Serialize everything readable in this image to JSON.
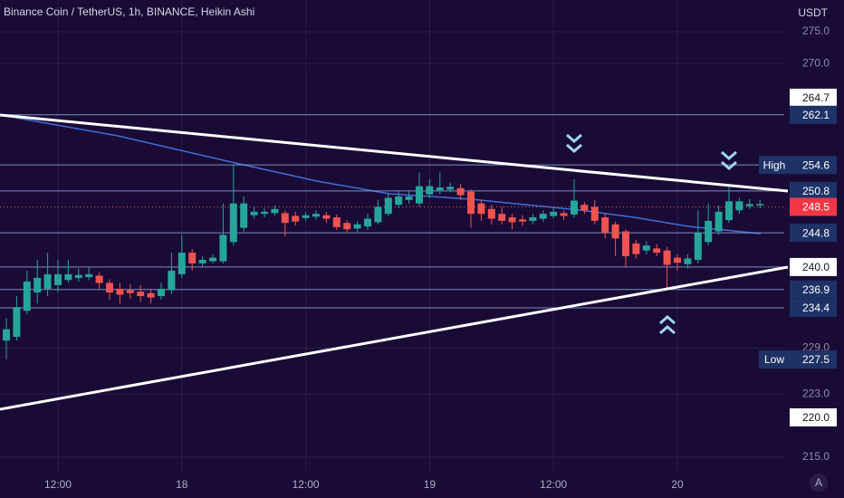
{
  "chart_data": {
    "type": "candlestick",
    "title": "Binance Coin / TetherUS, 1h, BINANCE, Heikin Ashi",
    "currency": "USDT",
    "scale_button": "A",
    "log_scale": true,
    "grid": true,
    "up_color": "#26a69a",
    "down_color": "#ef5350",
    "ylim": [
      213.3,
      280.1
    ],
    "yticks": [
      {
        "value": 275,
        "label": "275.0"
      },
      {
        "value": 270,
        "label": "270.0"
      },
      {
        "value": 229,
        "label": "229.0"
      },
      {
        "value": 223,
        "label": "223.0"
      },
      {
        "value": 215,
        "label": "215.0"
      }
    ],
    "categories": [
      null,
      null,
      null,
      null,
      null,
      "12:00",
      null,
      null,
      null,
      null,
      null,
      null,
      null,
      null,
      null,
      null,
      null,
      "18",
      null,
      null,
      null,
      null,
      null,
      null,
      null,
      null,
      null,
      null,
      null,
      "12:00",
      null,
      null,
      null,
      null,
      null,
      null,
      null,
      null,
      null,
      null,
      null,
      "19",
      null,
      null,
      null,
      null,
      null,
      null,
      null,
      null,
      null,
      null,
      null,
      "12:00",
      null,
      null,
      null,
      null,
      null,
      null,
      null,
      null,
      null,
      null,
      null,
      "20",
      null,
      null,
      null,
      null,
      null,
      null,
      null,
      null
    ],
    "open": [
      230,
      230.5,
      234,
      236.5,
      237,
      237.5,
      238.2,
      238.5,
      238.6,
      238.8,
      237.8,
      237,
      236.8,
      236.6,
      236.4,
      236,
      236.8,
      239,
      242,
      240.5,
      240.8,
      240.8,
      243.5,
      245.5,
      247.3,
      247.5,
      247.6,
      247.6,
      247.2,
      246.9,
      247.1,
      247.3,
      247,
      246.2,
      245.4,
      245.7,
      246.3,
      247.5,
      248.8,
      249.5,
      249,
      250.3,
      250.9,
      251,
      251.2,
      250.7,
      249,
      248.2,
      247.5,
      247,
      246.7,
      246.5,
      246.8,
      247.2,
      247.6,
      247.4,
      248.8,
      248.5,
      247,
      246,
      245,
      243.3,
      242.3,
      242.6,
      242.3,
      241.3,
      240.4,
      241,
      243.5,
      245,
      246.6,
      248,
      248.6,
      248.7
    ],
    "high": [
      233,
      236,
      239.5,
      241,
      242,
      241,
      241,
      239.8,
      240,
      239.3,
      238.3,
      237.8,
      237.6,
      237.5,
      237,
      237.8,
      242,
      244.5,
      242.5,
      241.5,
      241.8,
      249,
      254.6,
      250,
      248.5,
      248.3,
      248.7,
      248,
      247.8,
      247.8,
      248,
      247.8,
      247.4,
      246.6,
      246.5,
      247.5,
      249.5,
      250.5,
      250.8,
      250.8,
      253.5,
      252.5,
      253.5,
      252,
      251.8,
      251,
      249.5,
      248.8,
      248.5,
      247.5,
      247.3,
      247.5,
      248,
      248.4,
      248,
      252.5,
      249.2,
      249.5,
      247.5,
      246.4,
      245.3,
      243.8,
      243.6,
      243.2,
      242.8,
      241.8,
      241.8,
      248,
      249,
      248.7,
      251.5,
      249.8,
      249.6,
      249.5
    ],
    "low": [
      227.5,
      230,
      233.5,
      235,
      236,
      236.5,
      237.8,
      238,
      238.2,
      237,
      235.5,
      235,
      235.6,
      235.2,
      235,
      235.5,
      236.3,
      238.5,
      239.5,
      240,
      240.5,
      240.5,
      243,
      245,
      246.8,
      247,
      247.2,
      244.3,
      245.8,
      246.5,
      246.7,
      246.2,
      245.2,
      244.8,
      244.8,
      245.2,
      246,
      247.2,
      248.3,
      249,
      248.5,
      249.8,
      250.3,
      250.6,
      249.5,
      245.5,
      246.5,
      246,
      246,
      245.3,
      245.8,
      246,
      246.4,
      246.9,
      246.6,
      247,
      247.5,
      246,
      244,
      241.5,
      240,
      241.2,
      241.8,
      241.5,
      236.9,
      239.5,
      239.8,
      240.5,
      243,
      244.5,
      246.2,
      247.5,
      248.2,
      248.3
    ],
    "close": [
      231.5,
      234.5,
      238,
      238.5,
      239,
      239,
      239,
      238.9,
      239,
      237.8,
      236.5,
      236.2,
      236.4,
      236,
      235.8,
      237,
      239.5,
      242,
      240.5,
      241,
      241.3,
      244.5,
      249,
      249,
      247.8,
      247.8,
      248.2,
      246.2,
      246.4,
      247.3,
      247.5,
      246.8,
      245.6,
      245.3,
      246,
      246.8,
      248.5,
      249.8,
      250,
      250,
      251.5,
      251.5,
      251.3,
      251.4,
      250.2,
      247.5,
      247.5,
      246.8,
      246.5,
      246.3,
      246.4,
      247,
      247.5,
      247.8,
      247.2,
      249.4,
      248,
      246.5,
      244.8,
      244,
      241.5,
      241.8,
      243,
      242,
      240.3,
      240.6,
      241.2,
      244.8,
      246.5,
      247.8,
      249.3,
      249.3,
      248.9,
      248.9
    ],
    "markers": [
      {
        "value": 264.7,
        "style": "light"
      },
      {
        "value": 262.1,
        "style": "dark",
        "line": true
      },
      {
        "name": "High",
        "value": 254.6,
        "style": "dark",
        "line": true
      },
      {
        "value": 250.8,
        "style": "dark",
        "line": true
      },
      {
        "value": 248.5,
        "style": "current"
      },
      {
        "value": 244.8,
        "style": "dark",
        "line": true
      },
      {
        "value": 240,
        "label": "240.0",
        "style": "light",
        "line": true
      },
      {
        "value": 236.9,
        "style": "dark",
        "line": true
      },
      {
        "value": 234.4,
        "style": "dark",
        "line": true
      },
      {
        "name": "Low",
        "value": 227.5,
        "style": "dark"
      },
      {
        "value": 220,
        "label": "220.0",
        "style": "light"
      }
    ]
  }
}
